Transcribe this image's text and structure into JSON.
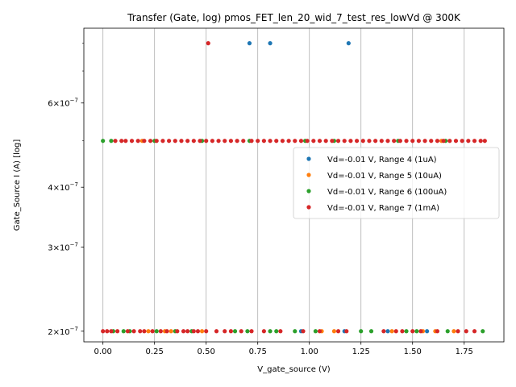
{
  "chart_data": {
    "type": "scatter",
    "title": "Transfer (Gate, log) pmos_FET_len_20_wid_7_test_res_lowVd @ 300K",
    "xlabel": "V_gate_source (V)",
    "ylabel": "Gate_Source I (A) [log]",
    "xlim": [
      -0.0925,
      1.9425
    ],
    "ylim": [
      1.9e-07,
      8.6e-07
    ],
    "yscale": "log",
    "grid": "x-only",
    "legend_position": "center-right",
    "xticks": [
      0.0,
      0.25,
      0.5,
      0.75,
      1.0,
      1.25,
      1.5,
      1.75
    ],
    "xtick_labels": [
      "0.00",
      "0.25",
      "0.50",
      "0.75",
      "1.00",
      "1.25",
      "1.50",
      "1.75"
    ],
    "yticks": [
      2e-07,
      3e-07,
      4e-07,
      6e-07
    ],
    "ytick_labels": [
      {
        "mant": "2",
        "exp": "−7"
      },
      {
        "mant": "3",
        "exp": "−7"
      },
      {
        "mant": "4",
        "exp": "−7"
      },
      {
        "mant": "6",
        "exp": "−7"
      }
    ],
    "series": [
      {
        "name": "Vd=-0.01 V, Range 4 (1uA)",
        "color": "#1f77b4",
        "x_lo": [
          0.96,
          1.17,
          1.38,
          1.57
        ],
        "x_mid": [],
        "x_hi": [
          0.71,
          0.81,
          1.19
        ]
      },
      {
        "name": "Vd=-0.01 V, Range 5 (10uA)",
        "color": "#ff7f0e",
        "x_lo": [
          0.22,
          0.3,
          0.33,
          0.48,
          1.06,
          1.12,
          1.4,
          1.55,
          1.61,
          1.7
        ],
        "x_mid": [
          0.19,
          1.64
        ],
        "x_hi": []
      },
      {
        "name": "Vd=-0.01 V, Range 6 (100uA)",
        "color": "#2ca02c",
        "x_lo": [
          0.05,
          0.1,
          0.13,
          0.26,
          0.35,
          0.43,
          0.64,
          0.7,
          0.81,
          0.84,
          0.93,
          1.03,
          1.25,
          1.3,
          1.47,
          1.52,
          1.67,
          1.84
        ],
        "x_mid": [
          0.0,
          0.04,
          0.25,
          0.48,
          0.71,
          0.98,
          1.12,
          1.43,
          1.66
        ],
        "x_hi": []
      },
      {
        "name": "Vd=-0.01 V, Range 7 (1mA)",
        "color": "#d62728",
        "x_lo": [
          0.0,
          0.02,
          0.04,
          0.07,
          0.12,
          0.15,
          0.18,
          0.2,
          0.24,
          0.28,
          0.31,
          0.36,
          0.39,
          0.41,
          0.44,
          0.46,
          0.5,
          0.55,
          0.59,
          0.62,
          0.67,
          0.72,
          0.78,
          0.86,
          0.97,
          1.05,
          1.14,
          1.18,
          1.36,
          1.42,
          1.45,
          1.5,
          1.54,
          1.62,
          1.72,
          1.76,
          1.8
        ],
        "x_mid": [
          0.06,
          0.09,
          0.11,
          0.14,
          0.17,
          0.2,
          0.23,
          0.26,
          0.29,
          0.32,
          0.35,
          0.38,
          0.41,
          0.44,
          0.47,
          0.5,
          0.53,
          0.56,
          0.59,
          0.62,
          0.65,
          0.68,
          0.72,
          0.75,
          0.78,
          0.81,
          0.84,
          0.87,
          0.9,
          0.93,
          0.96,
          0.99,
          1.02,
          1.05,
          1.08,
          1.11,
          1.14,
          1.17,
          1.2,
          1.23,
          1.26,
          1.29,
          1.32,
          1.35,
          1.38,
          1.41,
          1.44,
          1.47,
          1.5,
          1.53,
          1.56,
          1.59,
          1.62,
          1.65,
          1.68,
          1.71,
          1.74,
          1.77,
          1.8,
          1.83,
          1.85
        ],
        "x_hi": [
          0.51
        ]
      }
    ],
    "levels": {
      "lo": 2e-07,
      "mid": 5e-07,
      "hi": 8e-07
    }
  }
}
